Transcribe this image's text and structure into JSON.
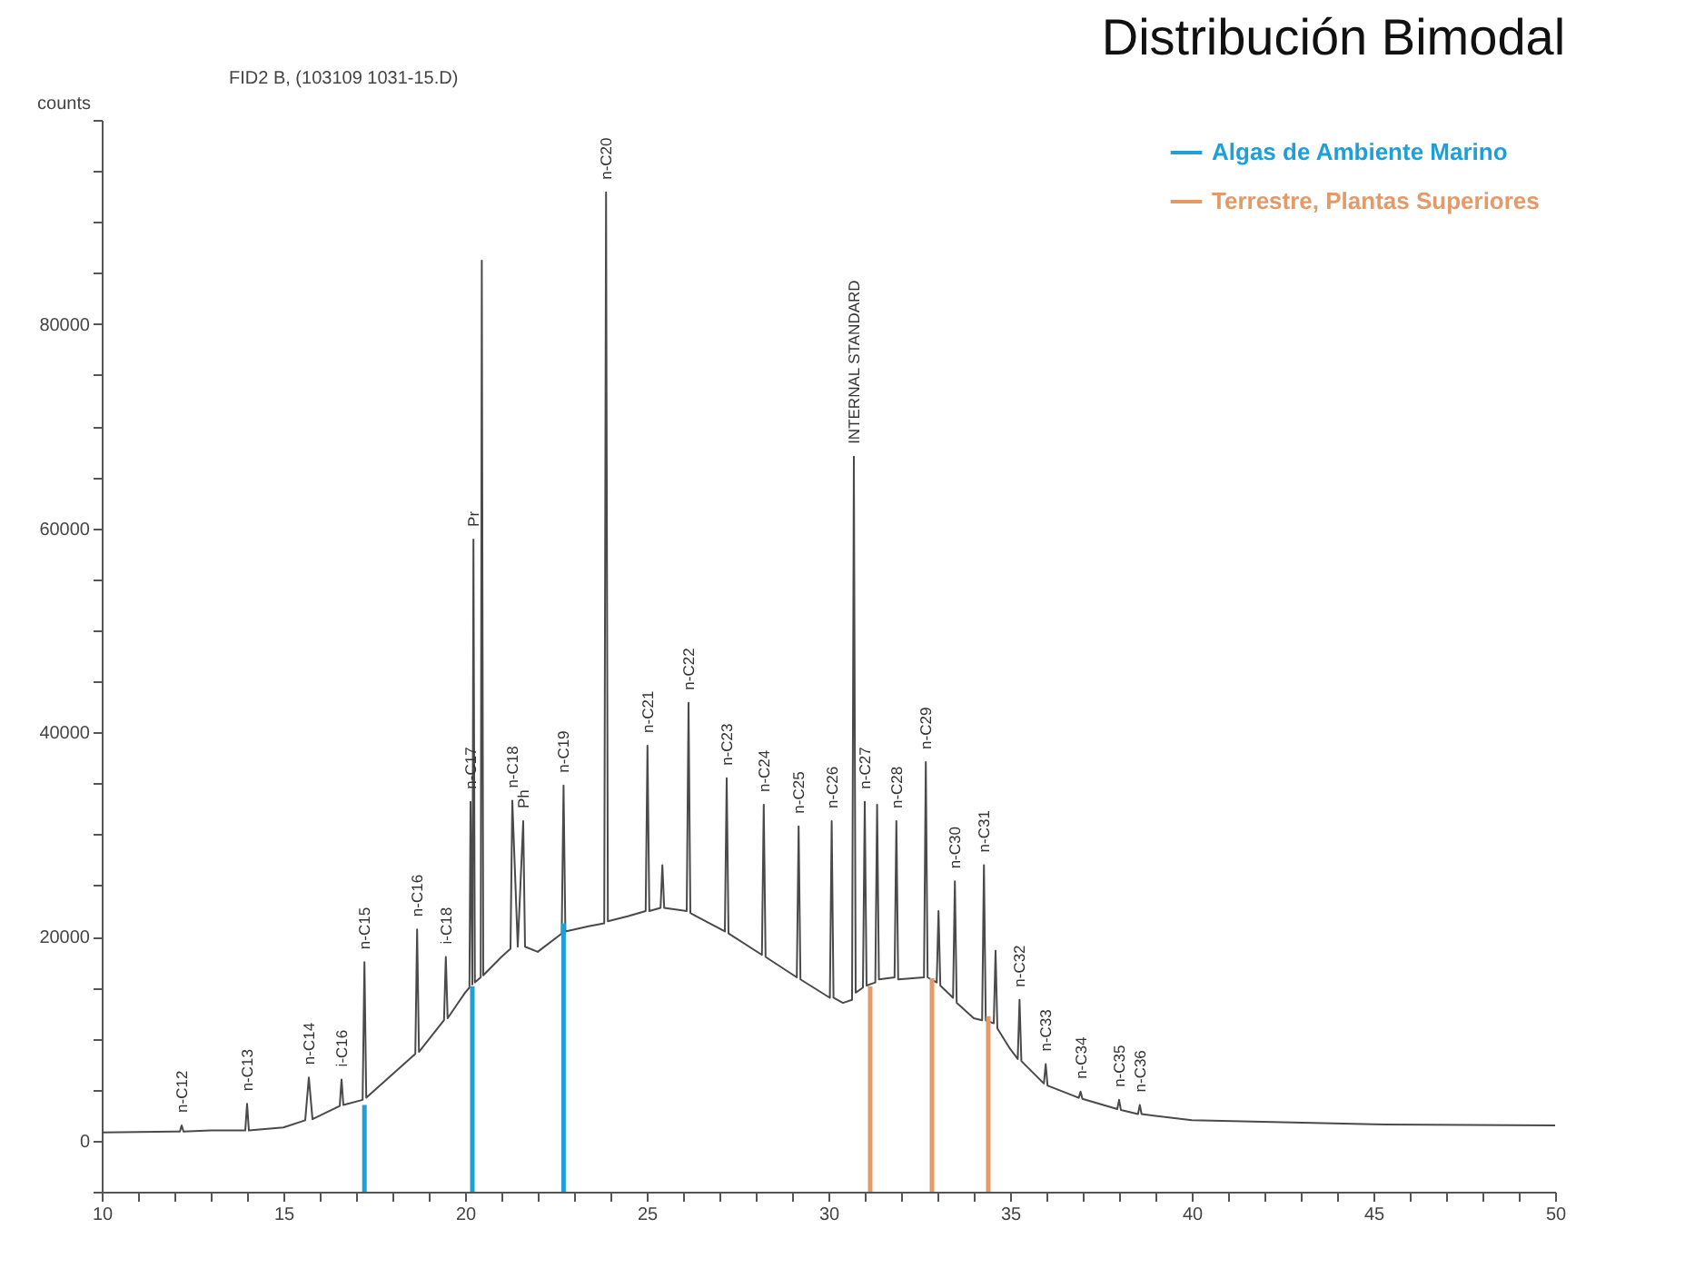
{
  "chart_data": {
    "type": "line",
    "title": "Distribución Bimodal",
    "ylabel": "counts",
    "annotations": [
      "FID2 B, (103109 1031-15.D)",
      {
        "text": "n-C12",
        "x": 12.2,
        "y": 1500
      },
      {
        "text": "n-C13",
        "x": 14.0,
        "y": 3600
      },
      {
        "text": "n-C14",
        "x": 15.7,
        "y": 6200
      },
      {
        "text": "i-C16",
        "x": 16.6,
        "y": 6000
      },
      {
        "text": "n-C15",
        "x": 17.23,
        "y": 17500
      },
      {
        "text": "n-C16",
        "x": 18.68,
        "y": 20700
      },
      {
        "text": "i-C18",
        "x": 19.47,
        "y": 18000
      },
      {
        "text": "n-C17",
        "x": 20.15,
        "y": 33200
      },
      {
        "text": "Pr",
        "x": 20.23,
        "y": 58900
      },
      {
        "text": "n-C18",
        "x": 21.3,
        "y": 33300
      },
      {
        "text": "Ph",
        "x": 21.6,
        "y": 31300
      },
      {
        "text": "n-C19",
        "x": 22.71,
        "y": 34800
      },
      {
        "text": "n-C20",
        "x": 23.88,
        "y": 92900
      },
      {
        "text": "n-C21",
        "x": 25.02,
        "y": 38700
      },
      {
        "text": "n-C22",
        "x": 26.15,
        "y": 42900
      },
      {
        "text": "n-C23",
        "x": 27.2,
        "y": 35500
      },
      {
        "text": "n-C24",
        "x": 28.22,
        "y": 32900
      },
      {
        "text": "n-C25",
        "x": 29.18,
        "y": 30800
      },
      {
        "text": "n-C26",
        "x": 30.09,
        "y": 31300
      },
      {
        "text": "INTERNAL STANDARD",
        "x": 30.7,
        "y": 67000
      },
      {
        "text": "n-C27",
        "x": 31.0,
        "y": 33200
      },
      {
        "text": "n-C28",
        "x": 31.87,
        "y": 31300
      },
      {
        "text": "n-C29",
        "x": 32.68,
        "y": 37100
      },
      {
        "text": "n-C30",
        "x": 33.48,
        "y": 25400
      },
      {
        "text": "n-C31",
        "x": 34.28,
        "y": 27000
      },
      {
        "text": "n-C32",
        "x": 35.26,
        "y": 13800
      },
      {
        "text": "n-C33",
        "x": 35.98,
        "y": 7500
      },
      {
        "text": "n-C34",
        "x": 36.94,
        "y": 4800
      },
      {
        "text": "n-C35",
        "x": 38.0,
        "y": 4000
      },
      {
        "text": "n-C36",
        "x": 38.57,
        "y": 3500
      }
    ],
    "xlim": [
      10,
      50
    ],
    "xticks": [
      10,
      {
        "value": 11,
        "label": null
      },
      {
        "value": 12,
        "label": null
      },
      {
        "value": 13,
        "label": null
      },
      {
        "value": 14,
        "label": null
      },
      15,
      {
        "value": 16,
        "label": null
      },
      {
        "value": 17,
        "label": null
      },
      {
        "value": 18,
        "label": null
      },
      {
        "value": 19,
        "label": null
      },
      20,
      {
        "value": 21,
        "label": null
      },
      {
        "value": 22,
        "label": null
      },
      {
        "value": 23,
        "label": null
      },
      {
        "value": 24,
        "label": null
      },
      25,
      {
        "value": 26,
        "label": null
      },
      {
        "value": 27,
        "label": null
      },
      {
        "value": 28,
        "label": null
      },
      {
        "value": 29,
        "label": null
      },
      30,
      {
        "value": 31,
        "label": null
      },
      {
        "value": 32,
        "label": null
      },
      {
        "value": 33,
        "label": null
      },
      {
        "value": 34,
        "label": null
      },
      35,
      {
        "value": 36,
        "label": null
      },
      {
        "value": 37,
        "label": null
      },
      {
        "value": 38,
        "label": null
      },
      {
        "value": 39,
        "label": null
      },
      40,
      {
        "value": 41,
        "label": null
      },
      {
        "value": 42,
        "label": null
      },
      {
        "value": 43,
        "label": null
      },
      {
        "value": 44,
        "label": null
      },
      45,
      {
        "value": 46,
        "label": null
      },
      {
        "value": 47,
        "label": null
      },
      {
        "value": 48,
        "label": null
      },
      {
        "value": 49,
        "label": null
      },
      50
    ],
    "ylim": [
      -5000,
      100000
    ],
    "yticks": [
      {
        "value": -5000,
        "label": null
      },
      0,
      {
        "value": 5000,
        "label": null
      },
      {
        "value": 10000,
        "label": null
      },
      {
        "value": 15000,
        "label": null
      },
      20000,
      {
        "value": 25000,
        "label": null
      },
      {
        "value": 30000,
        "label": null
      },
      {
        "value": 35000,
        "label": null
      },
      40000,
      {
        "value": 45000,
        "label": null
      },
      {
        "value": 50000,
        "label": null
      },
      {
        "value": 55000,
        "label": null
      },
      60000,
      {
        "value": 65000,
        "label": null
      },
      {
        "value": 70000,
        "label": null
      },
      {
        "value": 75000,
        "label": null
      },
      80000,
      {
        "value": 85000,
        "label": null
      },
      {
        "value": 90000,
        "label": null
      },
      {
        "value": 95000,
        "label": null
      },
      {
        "value": 100000,
        "label": null
      }
    ],
    "legend": "top right",
    "marker": "none",
    "line_style": "solid",
    "series": [
      {
        "color": "#4a4a4a",
        "x": [
          10,
          12.0,
          12.15,
          12.2,
          12.25,
          13.0,
          13.95,
          14.0,
          14.05,
          15.0,
          15.6,
          15.7,
          15.8,
          16.2,
          16.55,
          16.6,
          16.65,
          17.18,
          17.23,
          17.28,
          18.0,
          18.63,
          18.68,
          18.73,
          19.42,
          19.47,
          19.52,
          20.0,
          20.12,
          20.15,
          20.2,
          20.23,
          20.27,
          20.43,
          20.46,
          20.5,
          21.0,
          21.25,
          21.3,
          21.45,
          21.6,
          21.65,
          22.0,
          22.66,
          22.71,
          22.76,
          23.4,
          23.83,
          23.88,
          23.93,
          24.5,
          24.97,
          25.02,
          25.07,
          25.38,
          25.43,
          25.48,
          26.1,
          26.15,
          26.2,
          27.15,
          27.2,
          27.25,
          28.17,
          28.22,
          28.27,
          29.13,
          29.18,
          29.23,
          30.04,
          30.09,
          30.14,
          30.4,
          30.65,
          30.7,
          30.75,
          30.95,
          31.0,
          31.05,
          31.29,
          31.34,
          31.39,
          31.82,
          31.87,
          31.92,
          32.63,
          32.68,
          32.73,
          32.98,
          33.03,
          33.08,
          33.43,
          33.48,
          33.53,
          34.0,
          34.23,
          34.28,
          34.33,
          34.55,
          34.6,
          34.65,
          35.0,
          35.21,
          35.26,
          35.31,
          35.93,
          35.98,
          36.03,
          36.89,
          36.94,
          36.99,
          37.95,
          38.0,
          38.05,
          38.52,
          38.57,
          38.62,
          40,
          45,
          50
        ],
        "values": [
          800,
          900,
          900,
          1500,
          900,
          1000,
          1000,
          3600,
          1000,
          1300,
          2000,
          6200,
          2100,
          2800,
          3400,
          6000,
          3500,
          4000,
          17500,
          4200,
          6500,
          8500,
          20700,
          8700,
          11800,
          18000,
          12000,
          14500,
          15000,
          33200,
          15300,
          58900,
          15500,
          16000,
          86200,
          16200,
          18000,
          18800,
          33300,
          19000,
          31300,
          19000,
          18500,
          20300,
          34800,
          20500,
          21000,
          21300,
          92900,
          21500,
          22000,
          22500,
          38700,
          22500,
          22800,
          27000,
          22800,
          22500,
          42900,
          22300,
          20500,
          35500,
          20300,
          18200,
          32900,
          18000,
          16000,
          30800,
          15800,
          14000,
          31300,
          14000,
          13500,
          13800,
          67000,
          14500,
          15000,
          33200,
          15200,
          15500,
          32900,
          15800,
          16000,
          31300,
          15800,
          16000,
          37100,
          16000,
          15500,
          22500,
          15200,
          14000,
          25400,
          13500,
          12000,
          11800,
          27000,
          11800,
          11500,
          18600,
          11000,
          9000,
          8000,
          13800,
          7800,
          5600,
          7500,
          5400,
          4200,
          4800,
          4100,
          3100,
          4000,
          3000,
          2600,
          3500,
          2600,
          2000,
          1600,
          1500
        ]
      },
      {
        "name": "Algas de Ambiente  Marino",
        "type": "bar",
        "color": "#1e9fd8",
        "x": [
          17.23,
          20.2,
          22.71
        ],
        "base": [
          -5000,
          -5000,
          -5000
        ],
        "values": [
          8500,
          20100,
          26300
        ]
      },
      {
        "name": "Terrestre, Plantas Superiores",
        "type": "bar",
        "color": "#e39a68",
        "x": [
          31.15,
          32.85,
          34.4
        ],
        "base": [
          -5000,
          -5000,
          -5000
        ],
        "values": [
          20100,
          20900,
          17200
        ]
      }
    ]
  }
}
